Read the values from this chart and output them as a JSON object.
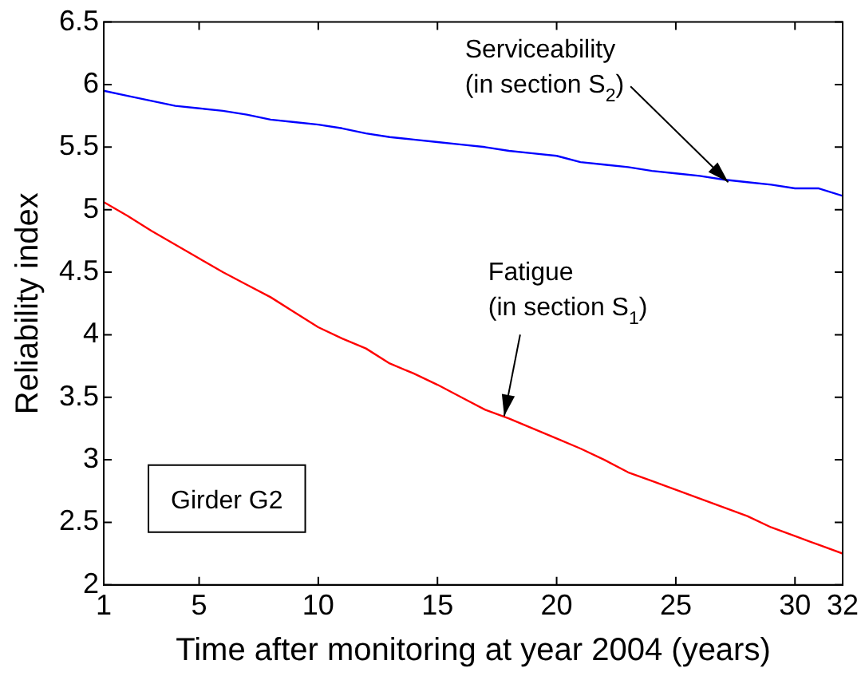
{
  "chart_data": {
    "type": "line",
    "xlabel": "Time after monitoring at year 2004 (years)",
    "ylabel": "Reliability index",
    "x": [
      1,
      2,
      3,
      4,
      5,
      6,
      7,
      8,
      9,
      10,
      11,
      12,
      13,
      14,
      15,
      16,
      17,
      18,
      19,
      20,
      21,
      22,
      23,
      24,
      25,
      26,
      27,
      28,
      29,
      30,
      31,
      32
    ],
    "series": [
      {
        "color": "#0000ff",
        "values": [
          5.95,
          5.91,
          5.87,
          5.83,
          5.81,
          5.79,
          5.76,
          5.72,
          5.7,
          5.68,
          5.65,
          5.61,
          5.58,
          5.56,
          5.54,
          5.52,
          5.5,
          5.47,
          5.45,
          5.43,
          5.38,
          5.36,
          5.34,
          5.31,
          5.29,
          5.27,
          5.24,
          5.22,
          5.2,
          5.17,
          5.17,
          5.11
        ]
      },
      {
        "color": "#ff0000",
        "values": [
          5.06,
          4.95,
          4.83,
          4.72,
          4.61,
          4.5,
          4.4,
          4.3,
          4.18,
          4.06,
          3.97,
          3.89,
          3.77,
          3.69,
          3.6,
          3.5,
          3.4,
          3.33,
          3.25,
          3.17,
          3.09,
          3.0,
          2.9,
          2.83,
          2.76,
          2.69,
          2.62,
          2.55,
          2.46,
          2.39,
          2.32,
          2.25
        ]
      }
    ],
    "xlim": [
      1,
      32
    ],
    "xticks": [
      1,
      5,
      10,
      15,
      20,
      25,
      30,
      32
    ],
    "ylim": [
      2,
      6.5
    ],
    "yticks": [
      2,
      2.5,
      3,
      3.5,
      4,
      4.5,
      5,
      5.5,
      6,
      6.5
    ],
    "grid": false,
    "legend": false,
    "marker": "none",
    "line_style": "solid",
    "annotations": [
      {
        "text": "Serviceability\n(in section S$_{2}$)",
        "x": 27.2,
        "y": 5.22
      },
      {
        "text": "Fatigue\n(in section S$_{1}$)",
        "x": 17.8,
        "y": 3.35
      },
      "Girder G2"
    ]
  }
}
